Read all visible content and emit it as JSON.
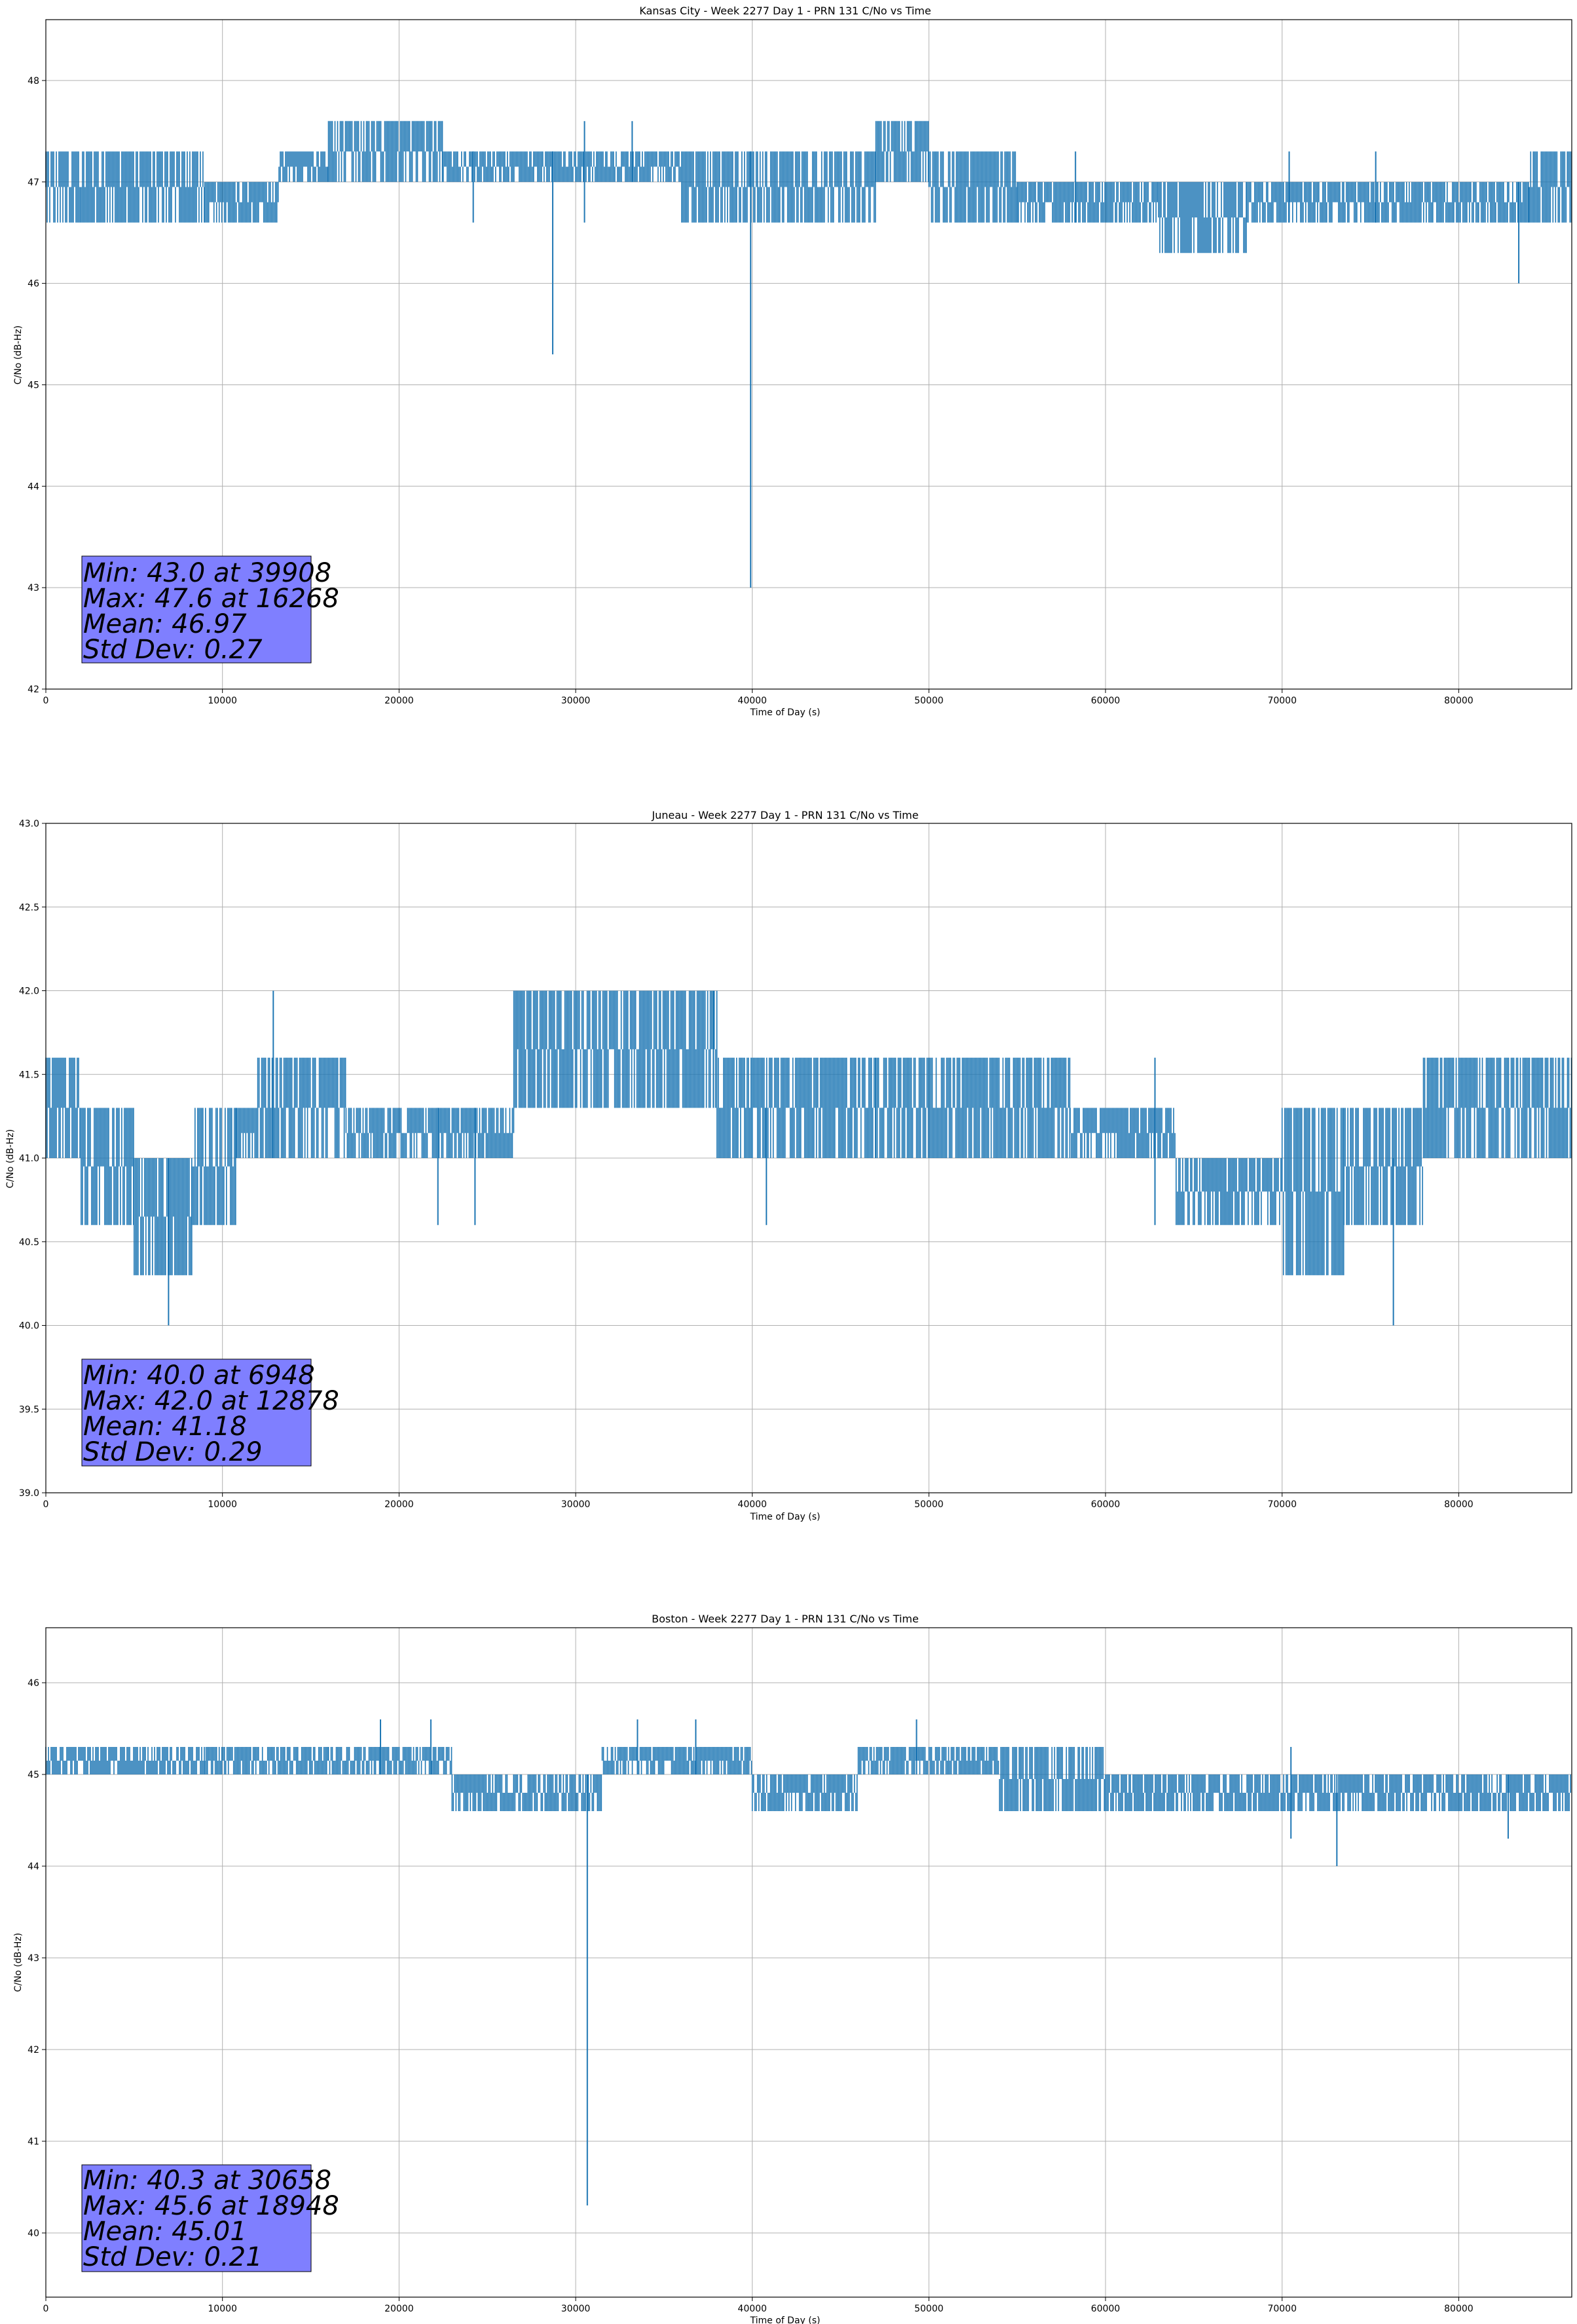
{
  "chart_data": [
    {
      "type": "line",
      "title": "Kansas City - Week 2277 Day 1 - PRN 131 C/No vs Time",
      "xlabel": "Time of Day (s)",
      "ylabel": "C/No (dB-Hz)",
      "xlim": [
        0,
        86400
      ],
      "ylim": [
        42,
        48.6
      ],
      "xticks": [
        0,
        10000,
        20000,
        30000,
        40000,
        50000,
        60000,
        70000,
        80000
      ],
      "yticks": [
        42,
        43,
        44,
        45,
        46,
        47,
        48
      ],
      "ytick_labels": [
        "42",
        "43",
        "44",
        "45",
        "46",
        "47",
        "48"
      ],
      "grid": true,
      "color": "#1f77b4",
      "series": [
        {
          "segments": [
            {
              "x": [
                0,
                2000
              ],
              "values": [
                46.6,
                47.3
              ]
            },
            {
              "x": [
                2000,
                9000
              ],
              "values": [
                46.6,
                47.3
              ]
            },
            {
              "x": [
                9000,
                13200
              ],
              "values": [
                46.6,
                47.0
              ]
            },
            {
              "x": [
                13200,
                16000
              ],
              "values": [
                47.0,
                47.3
              ]
            },
            {
              "x": [
                16000,
                22500
              ],
              "values": [
                47.0,
                47.6
              ]
            },
            {
              "x": [
                22500,
                36000
              ],
              "values": [
                47.0,
                47.3
              ]
            },
            {
              "x": [
                36000,
                40000
              ],
              "values": [
                46.6,
                47.3
              ]
            },
            {
              "x": [
                40000,
                47000
              ],
              "values": [
                46.6,
                47.3
              ]
            },
            {
              "x": [
                47000,
                50000
              ],
              "values": [
                47.0,
                47.6
              ]
            },
            {
              "x": [
                50000,
                55000
              ],
              "values": [
                46.6,
                47.3
              ]
            },
            {
              "x": [
                55000,
                63000
              ],
              "values": [
                46.6,
                47.0
              ]
            },
            {
              "x": [
                63000,
                68000
              ],
              "values": [
                46.3,
                47.0
              ]
            },
            {
              "x": [
                68000,
                84000
              ],
              "values": [
                46.6,
                47.0
              ]
            },
            {
              "x": [
                84000,
                86400
              ],
              "values": [
                46.6,
                47.3
              ]
            }
          ],
          "spikes": [
            {
              "x": 24200,
              "low": 46.6,
              "high": 47.3
            },
            {
              "x": 28700,
              "low": 45.3,
              "high": 47.3
            },
            {
              "x": 30500,
              "low": 46.6,
              "high": 47.6
            },
            {
              "x": 33200,
              "low": 47.0,
              "high": 47.6
            },
            {
              "x": 39908,
              "low": 43.0,
              "high": 47.3
            },
            {
              "x": 58300,
              "low": 46.6,
              "high": 47.3
            },
            {
              "x": 70400,
              "low": 46.6,
              "high": 47.3
            },
            {
              "x": 75300,
              "low": 46.6,
              "high": 47.3
            },
            {
              "x": 83400,
              "low": 46.0,
              "high": 47.0
            }
          ]
        }
      ],
      "stats": [
        "Min: 43.0 at 39908",
        "Max: 47.6 at 16268",
        "Mean: 46.97",
        "Std Dev: 0.27"
      ],
      "stats_box_color": "#7f7fff"
    },
    {
      "type": "line",
      "title": "Juneau - Week 2277 Day 1 - PRN 131 C/No vs Time",
      "xlabel": "Time of Day (s)",
      "ylabel": "C/No (dB-Hz)",
      "xlim": [
        0,
        86400
      ],
      "ylim": [
        39.0,
        43.0
      ],
      "xticks": [
        0,
        10000,
        20000,
        30000,
        40000,
        50000,
        60000,
        70000,
        80000
      ],
      "yticks": [
        39.0,
        39.5,
        40.0,
        40.5,
        41.0,
        41.5,
        42.0,
        42.5,
        43.0
      ],
      "ytick_labels": [
        "39.0",
        "39.5",
        "40.0",
        "40.5",
        "41.0",
        "41.5",
        "42.0",
        "42.5",
        "43.0"
      ],
      "grid": true,
      "color": "#1f77b4",
      "series": [
        {
          "segments": [
            {
              "x": [
                0,
                2000
              ],
              "values": [
                41.0,
                41.6
              ]
            },
            {
              "x": [
                2000,
                5000
              ],
              "values": [
                40.6,
                41.3
              ]
            },
            {
              "x": [
                5000,
                8300
              ],
              "values": [
                40.3,
                41.0
              ]
            },
            {
              "x": [
                8300,
                10800
              ],
              "values": [
                40.6,
                41.3
              ]
            },
            {
              "x": [
                10800,
                12000
              ],
              "values": [
                41.0,
                41.3
              ]
            },
            {
              "x": [
                12000,
                17000
              ],
              "values": [
                41.0,
                41.6
              ]
            },
            {
              "x": [
                17000,
                26500
              ],
              "values": [
                41.0,
                41.3
              ]
            },
            {
              "x": [
                26500,
                38000
              ],
              "values": [
                41.3,
                42.0
              ]
            },
            {
              "x": [
                38000,
                40000
              ],
              "values": [
                41.0,
                41.6
              ]
            },
            {
              "x": [
                40000,
                47000
              ],
              "values": [
                41.0,
                41.6
              ]
            },
            {
              "x": [
                47000,
                58000
              ],
              "values": [
                41.0,
                41.6
              ]
            },
            {
              "x": [
                58000,
                64000
              ],
              "values": [
                41.0,
                41.3
              ]
            },
            {
              "x": [
                64000,
                70000
              ],
              "values": [
                40.6,
                41.0
              ]
            },
            {
              "x": [
                70000,
                73500
              ],
              "values": [
                40.3,
                41.3
              ]
            },
            {
              "x": [
                73500,
                78000
              ],
              "values": [
                40.6,
                41.3
              ]
            },
            {
              "x": [
                78000,
                86400
              ],
              "values": [
                41.0,
                41.6
              ]
            }
          ],
          "spikes": [
            {
              "x": 6948,
              "low": 40.0,
              "high": 41.0
            },
            {
              "x": 12878,
              "low": 41.0,
              "high": 42.0
            },
            {
              "x": 22200,
              "low": 40.6,
              "high": 41.3
            },
            {
              "x": 24300,
              "low": 40.6,
              "high": 41.3
            },
            {
              "x": 37800,
              "low": 41.3,
              "high": 42.0
            },
            {
              "x": 40800,
              "low": 40.6,
              "high": 41.3
            },
            {
              "x": 62800,
              "low": 40.6,
              "high": 41.6
            },
            {
              "x": 76300,
              "low": 40.0,
              "high": 41.0
            }
          ]
        }
      ],
      "stats": [
        "Min: 40.0 at 6948",
        "Max: 42.0 at 12878",
        "Mean: 41.18",
        "Std Dev: 0.29"
      ],
      "stats_box_color": "#7f7fff"
    },
    {
      "type": "line",
      "title": "Boston - Week 2277 Day 1 - PRN 131 C/No vs Time",
      "xlabel": "Time of Day (s)",
      "ylabel": "C/No (dB-Hz)",
      "xlim": [
        0,
        86400
      ],
      "ylim": [
        39.3,
        46.6
      ],
      "xticks": [
        0,
        10000,
        20000,
        30000,
        40000,
        50000,
        60000,
        70000,
        80000
      ],
      "yticks": [
        40,
        41,
        42,
        43,
        44,
        45,
        46
      ],
      "ytick_labels": [
        "40",
        "41",
        "42",
        "43",
        "44",
        "45",
        "46"
      ],
      "grid": true,
      "color": "#1f77b4",
      "series": [
        {
          "segments": [
            {
              "x": [
                0,
                9000
              ],
              "values": [
                45.0,
                45.3
              ]
            },
            {
              "x": [
                9000,
                16000
              ],
              "values": [
                45.0,
                45.3
              ]
            },
            {
              "x": [
                16000,
                23000
              ],
              "values": [
                45.0,
                45.3
              ]
            },
            {
              "x": [
                23000,
                31500
              ],
              "values": [
                44.6,
                45.0
              ]
            },
            {
              "x": [
                31500,
                40000
              ],
              "values": [
                45.0,
                45.3
              ]
            },
            {
              "x": [
                40000,
                46000
              ],
              "values": [
                44.6,
                45.0
              ]
            },
            {
              "x": [
                46000,
                54000
              ],
              "values": [
                45.0,
                45.3
              ]
            },
            {
              "x": [
                54000,
                60000
              ],
              "values": [
                44.6,
                45.3
              ]
            },
            {
              "x": [
                60000,
                86400
              ],
              "values": [
                44.6,
                45.0
              ]
            }
          ],
          "spikes": [
            {
              "x": 18948,
              "low": 45.0,
              "high": 45.6
            },
            {
              "x": 21800,
              "low": 45.0,
              "high": 45.6
            },
            {
              "x": 30658,
              "low": 40.3,
              "high": 45.0
            },
            {
              "x": 33500,
              "low": 45.0,
              "high": 45.6
            },
            {
              "x": 36800,
              "low": 45.0,
              "high": 45.6
            },
            {
              "x": 49300,
              "low": 45.0,
              "high": 45.6
            },
            {
              "x": 70500,
              "low": 44.3,
              "high": 45.3
            },
            {
              "x": 73100,
              "low": 44.0,
              "high": 45.0
            },
            {
              "x": 82800,
              "low": 44.3,
              "high": 45.0
            }
          ]
        }
      ],
      "stats": [
        "Min: 40.3 at 30658",
        "Max: 45.6 at 18948",
        "Mean: 45.01",
        "Std Dev: 0.21"
      ],
      "stats_box_color": "#7f7fff"
    }
  ]
}
